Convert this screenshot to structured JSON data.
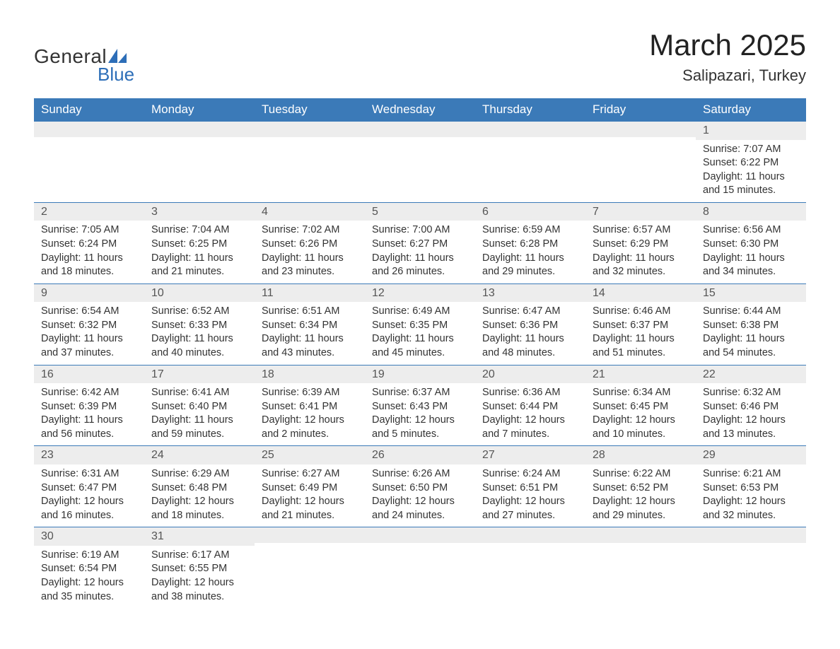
{
  "logo": {
    "text_general": "General",
    "text_blue": "Blue",
    "accent_color": "#2d6eb8"
  },
  "title": {
    "month": "March 2025",
    "location": "Salipazari, Turkey"
  },
  "colors": {
    "header_bg": "#3b7ab8",
    "header_fg": "#ffffff",
    "daynum_bg": "#ededed",
    "row_border": "#3b7ab8",
    "text": "#333333",
    "bg": "#ffffff"
  },
  "day_headers": [
    "Sunday",
    "Monday",
    "Tuesday",
    "Wednesday",
    "Thursday",
    "Friday",
    "Saturday"
  ],
  "line_labels": {
    "sunrise": "Sunrise: ",
    "sunset": "Sunset: ",
    "daylight": "Daylight: "
  },
  "weeks": [
    [
      null,
      null,
      null,
      null,
      null,
      null,
      {
        "n": "1",
        "sr": "7:07 AM",
        "ss": "6:22 PM",
        "dl": "11 hours and 15 minutes."
      }
    ],
    [
      {
        "n": "2",
        "sr": "7:05 AM",
        "ss": "6:24 PM",
        "dl": "11 hours and 18 minutes."
      },
      {
        "n": "3",
        "sr": "7:04 AM",
        "ss": "6:25 PM",
        "dl": "11 hours and 21 minutes."
      },
      {
        "n": "4",
        "sr": "7:02 AM",
        "ss": "6:26 PM",
        "dl": "11 hours and 23 minutes."
      },
      {
        "n": "5",
        "sr": "7:00 AM",
        "ss": "6:27 PM",
        "dl": "11 hours and 26 minutes."
      },
      {
        "n": "6",
        "sr": "6:59 AM",
        "ss": "6:28 PM",
        "dl": "11 hours and 29 minutes."
      },
      {
        "n": "7",
        "sr": "6:57 AM",
        "ss": "6:29 PM",
        "dl": "11 hours and 32 minutes."
      },
      {
        "n": "8",
        "sr": "6:56 AM",
        "ss": "6:30 PM",
        "dl": "11 hours and 34 minutes."
      }
    ],
    [
      {
        "n": "9",
        "sr": "6:54 AM",
        "ss": "6:32 PM",
        "dl": "11 hours and 37 minutes."
      },
      {
        "n": "10",
        "sr": "6:52 AM",
        "ss": "6:33 PM",
        "dl": "11 hours and 40 minutes."
      },
      {
        "n": "11",
        "sr": "6:51 AM",
        "ss": "6:34 PM",
        "dl": "11 hours and 43 minutes."
      },
      {
        "n": "12",
        "sr": "6:49 AM",
        "ss": "6:35 PM",
        "dl": "11 hours and 45 minutes."
      },
      {
        "n": "13",
        "sr": "6:47 AM",
        "ss": "6:36 PM",
        "dl": "11 hours and 48 minutes."
      },
      {
        "n": "14",
        "sr": "6:46 AM",
        "ss": "6:37 PM",
        "dl": "11 hours and 51 minutes."
      },
      {
        "n": "15",
        "sr": "6:44 AM",
        "ss": "6:38 PM",
        "dl": "11 hours and 54 minutes."
      }
    ],
    [
      {
        "n": "16",
        "sr": "6:42 AM",
        "ss": "6:39 PM",
        "dl": "11 hours and 56 minutes."
      },
      {
        "n": "17",
        "sr": "6:41 AM",
        "ss": "6:40 PM",
        "dl": "11 hours and 59 minutes."
      },
      {
        "n": "18",
        "sr": "6:39 AM",
        "ss": "6:41 PM",
        "dl": "12 hours and 2 minutes."
      },
      {
        "n": "19",
        "sr": "6:37 AM",
        "ss": "6:43 PM",
        "dl": "12 hours and 5 minutes."
      },
      {
        "n": "20",
        "sr": "6:36 AM",
        "ss": "6:44 PM",
        "dl": "12 hours and 7 minutes."
      },
      {
        "n": "21",
        "sr": "6:34 AM",
        "ss": "6:45 PM",
        "dl": "12 hours and 10 minutes."
      },
      {
        "n": "22",
        "sr": "6:32 AM",
        "ss": "6:46 PM",
        "dl": "12 hours and 13 minutes."
      }
    ],
    [
      {
        "n": "23",
        "sr": "6:31 AM",
        "ss": "6:47 PM",
        "dl": "12 hours and 16 minutes."
      },
      {
        "n": "24",
        "sr": "6:29 AM",
        "ss": "6:48 PM",
        "dl": "12 hours and 18 minutes."
      },
      {
        "n": "25",
        "sr": "6:27 AM",
        "ss": "6:49 PM",
        "dl": "12 hours and 21 minutes."
      },
      {
        "n": "26",
        "sr": "6:26 AM",
        "ss": "6:50 PM",
        "dl": "12 hours and 24 minutes."
      },
      {
        "n": "27",
        "sr": "6:24 AM",
        "ss": "6:51 PM",
        "dl": "12 hours and 27 minutes."
      },
      {
        "n": "28",
        "sr": "6:22 AM",
        "ss": "6:52 PM",
        "dl": "12 hours and 29 minutes."
      },
      {
        "n": "29",
        "sr": "6:21 AM",
        "ss": "6:53 PM",
        "dl": "12 hours and 32 minutes."
      }
    ],
    [
      {
        "n": "30",
        "sr": "6:19 AM",
        "ss": "6:54 PM",
        "dl": "12 hours and 35 minutes."
      },
      {
        "n": "31",
        "sr": "6:17 AM",
        "ss": "6:55 PM",
        "dl": "12 hours and 38 minutes."
      },
      null,
      null,
      null,
      null,
      null
    ]
  ]
}
